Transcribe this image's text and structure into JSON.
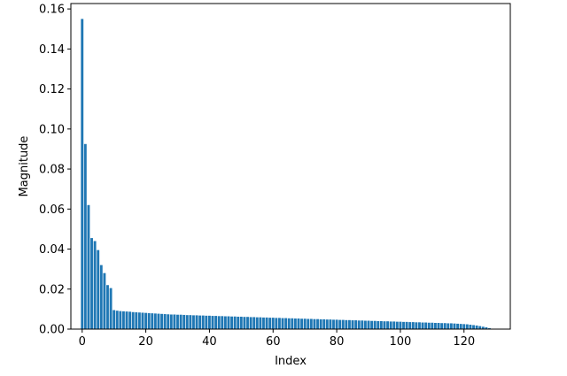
{
  "chart_data": {
    "type": "bar",
    "title": "",
    "xlabel": "Index",
    "ylabel": "Magnitude",
    "xlim": [
      -3.55,
      134.55
    ],
    "ylim": [
      0,
      0.1627
    ],
    "grid": false,
    "bar_color": "#1f77b4",
    "x_ticks": [
      0,
      20,
      40,
      60,
      80,
      100,
      120
    ],
    "y_ticks": [
      0.0,
      0.02,
      0.04,
      0.06,
      0.08,
      0.1,
      0.12,
      0.14,
      0.16
    ],
    "x_tick_labels": [
      "0",
      "20",
      "40",
      "60",
      "80",
      "100",
      "120"
    ],
    "y_tick_labels": [
      "0.00",
      "0.02",
      "0.04",
      "0.06",
      "0.08",
      "0.10",
      "0.12",
      "0.14",
      "0.16"
    ],
    "x": [
      0,
      1,
      2,
      3,
      4,
      5,
      6,
      7,
      8,
      9,
      10,
      11,
      12,
      13,
      14,
      15,
      16,
      17,
      18,
      19,
      20,
      21,
      22,
      23,
      24,
      25,
      26,
      27,
      28,
      29,
      30,
      31,
      32,
      33,
      34,
      35,
      36,
      37,
      38,
      39,
      40,
      41,
      42,
      43,
      44,
      45,
      46,
      47,
      48,
      49,
      50,
      51,
      52,
      53,
      54,
      55,
      56,
      57,
      58,
      59,
      60,
      61,
      62,
      63,
      64,
      65,
      66,
      67,
      68,
      69,
      70,
      71,
      72,
      73,
      74,
      75,
      76,
      77,
      78,
      79,
      80,
      81,
      82,
      83,
      84,
      85,
      86,
      87,
      88,
      89,
      90,
      91,
      92,
      93,
      94,
      95,
      96,
      97,
      98,
      99,
      100,
      101,
      102,
      103,
      104,
      105,
      106,
      107,
      108,
      109,
      110,
      111,
      112,
      113,
      114,
      115,
      116,
      117,
      118,
      119,
      120,
      121,
      122,
      123,
      124,
      125,
      126,
      127,
      128
    ],
    "values": [
      0.155,
      0.0925,
      0.062,
      0.0455,
      0.044,
      0.0395,
      0.032,
      0.028,
      0.022,
      0.0205,
      0.0095,
      0.0092,
      0.009,
      0.0089,
      0.0088,
      0.0087,
      0.0085,
      0.0084,
      0.0083,
      0.0082,
      0.0081,
      0.008,
      0.0079,
      0.0078,
      0.0077,
      0.0076,
      0.0075,
      0.0074,
      0.0073,
      0.0073,
      0.0072,
      0.0072,
      0.0071,
      0.007,
      0.007,
      0.0069,
      0.0069,
      0.0068,
      0.0068,
      0.0067,
      0.0067,
      0.0066,
      0.0066,
      0.0065,
      0.0065,
      0.0064,
      0.0064,
      0.0063,
      0.0063,
      0.0062,
      0.0062,
      0.0061,
      0.0061,
      0.006,
      0.006,
      0.0059,
      0.0059,
      0.0058,
      0.0058,
      0.0057,
      0.0057,
      0.0056,
      0.0056,
      0.0055,
      0.0055,
      0.0054,
      0.0054,
      0.0053,
      0.0053,
      0.0052,
      0.0052,
      0.0051,
      0.0051,
      0.005,
      0.005,
      0.0049,
      0.0049,
      0.0048,
      0.0048,
      0.0047,
      0.0047,
      0.0046,
      0.0046,
      0.0045,
      0.0045,
      0.0044,
      0.0044,
      0.0043,
      0.0043,
      0.0042,
      0.0042,
      0.0041,
      0.0041,
      0.004,
      0.004,
      0.0039,
      0.0039,
      0.0038,
      0.0038,
      0.0037,
      0.0037,
      0.0036,
      0.0036,
      0.0035,
      0.0035,
      0.0034,
      0.0034,
      0.0033,
      0.0033,
      0.0032,
      0.0032,
      0.0031,
      0.0031,
      0.003,
      0.003,
      0.0029,
      0.0029,
      0.0028,
      0.0027,
      0.0026,
      0.0025,
      0.0024,
      0.0022,
      0.002,
      0.0018,
      0.0015,
      0.0012,
      0.0009,
      0.0005
    ]
  }
}
